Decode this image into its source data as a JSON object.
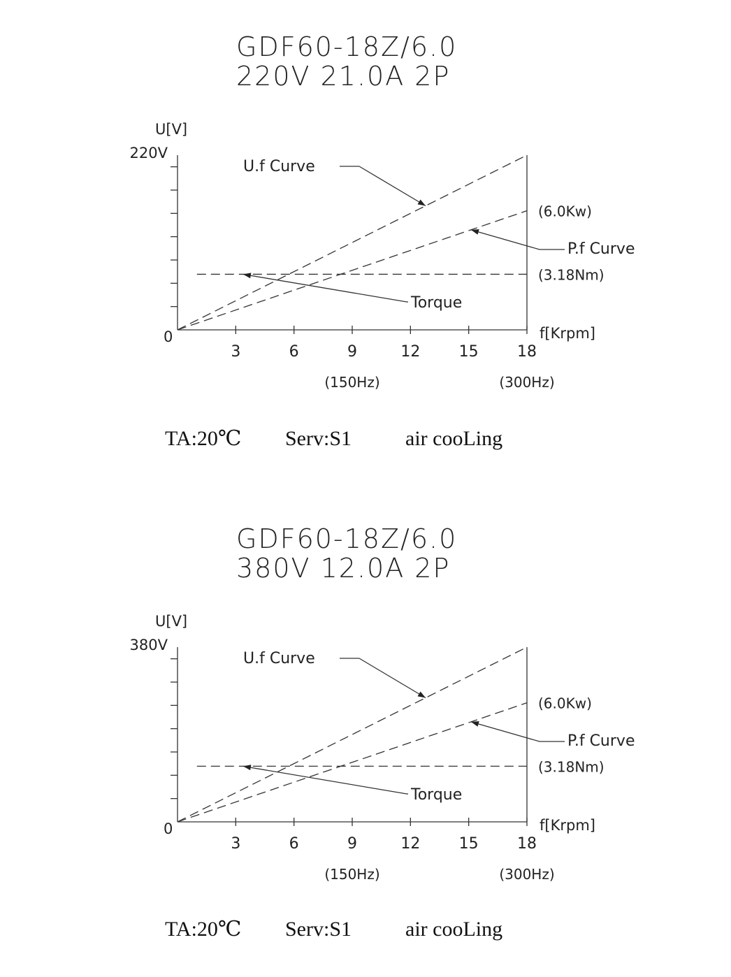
{
  "chart_data": [
    {
      "type": "line",
      "title": "GDF60-18Z/6.0",
      "subtitle": "220V 21.0A   2P",
      "ylabel": "U[V]",
      "ymax_label": "220V",
      "origin_label": "0",
      "xlabel": "f[Krpm]",
      "xlim": [
        0,
        18
      ],
      "ylim": [
        0,
        220
      ],
      "xticks": [
        3,
        6,
        9,
        12,
        15,
        18
      ],
      "xtick_labels": [
        "3",
        "6",
        "9",
        "12",
        "15",
        "18"
      ],
      "freq_labels": [
        {
          "x": 9,
          "label": "(150Hz)"
        },
        {
          "x": 18,
          "label": "(300Hz)"
        }
      ],
      "series": [
        {
          "name": "U.f Curve",
          "x": [
            0,
            18
          ],
          "y": [
            0,
            220
          ]
        },
        {
          "name": "P.f Curve",
          "x": [
            0,
            18
          ],
          "y": [
            0,
            150
          ],
          "end_label": "(6.0Kw)"
        },
        {
          "name": "Torque",
          "x": [
            1,
            18
          ],
          "y": [
            70,
            70
          ],
          "end_label": "(3.18Nm)"
        }
      ],
      "footer": {
        "ta": "TA:20℃",
        "serv": "Serv:S1",
        "cooling": "air cooLing"
      }
    },
    {
      "type": "line",
      "title": "GDF60-18Z/6.0",
      "subtitle": "380V 12.0A   2P",
      "ylabel": "U[V]",
      "ymax_label": "380V",
      "origin_label": "0",
      "xlabel": "f[Krpm]",
      "xlim": [
        0,
        18
      ],
      "ylim": [
        0,
        380
      ],
      "xticks": [
        3,
        6,
        9,
        12,
        15,
        18
      ],
      "xtick_labels": [
        "3",
        "6",
        "9",
        "12",
        "15",
        "18"
      ],
      "freq_labels": [
        {
          "x": 9,
          "label": "(150Hz)"
        },
        {
          "x": 18,
          "label": "(300Hz)"
        }
      ],
      "series": [
        {
          "name": "U.f Curve",
          "x": [
            0,
            18
          ],
          "y": [
            0,
            380
          ]
        },
        {
          "name": "P.f Curve",
          "x": [
            0,
            18
          ],
          "y": [
            0,
            259
          ],
          "end_label": "(6.0Kw)"
        },
        {
          "name": "Torque",
          "x": [
            1,
            18
          ],
          "y": [
            121,
            121
          ],
          "end_label": "(3.18Nm)"
        }
      ],
      "footer": {
        "ta": "TA:20℃",
        "serv": "Serv:S1",
        "cooling": "air cooLing"
      }
    }
  ]
}
